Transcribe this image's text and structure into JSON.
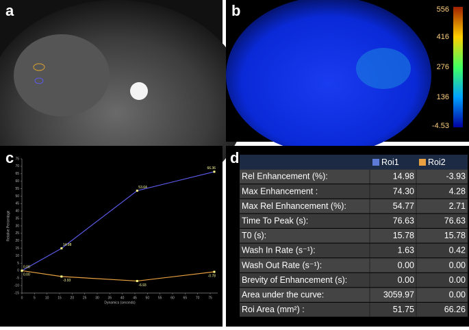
{
  "panels": {
    "a": "a",
    "b": "b",
    "c": "c",
    "d": "d"
  },
  "colorbar": {
    "clim": [
      -4.53,
      556
    ],
    "ticks": [
      556,
      416,
      276,
      136,
      -4.53
    ]
  },
  "chart_data": {
    "type": "line",
    "x_label": "Dynamics (seconds)",
    "y_label": "Relative Percentage",
    "x": [
      0,
      15.78,
      45.9,
      76.63
    ],
    "series": [
      {
        "name": "Roi1",
        "color": "#5a5ae6",
        "values": [
          0,
          14.98,
          53.64,
          66.36
        ],
        "value_labels": [
          "0.00",
          "14.98",
          "53.64",
          "66.36"
        ]
      },
      {
        "name": "Roi2",
        "color": "#e8a040",
        "values": [
          0,
          -3.93,
          -6.93,
          -0.78
        ],
        "value_labels": [
          "0.00",
          "-3.93",
          "-6.93",
          "-0.78"
        ]
      }
    ],
    "xlim": [
      0,
      78
    ],
    "xticks": [
      0,
      5,
      10,
      15,
      20,
      25,
      30,
      35,
      40,
      45,
      50,
      55,
      60,
      65,
      70,
      75
    ],
    "ylim": [
      -15,
      75
    ],
    "yticks": [
      -15,
      -10,
      -5,
      0,
      5,
      10,
      15,
      20,
      25,
      30,
      35,
      40,
      45,
      50,
      55,
      60,
      65,
      70,
      75
    ]
  },
  "table": {
    "header": [
      "Roi1",
      "Roi2"
    ],
    "rows": [
      [
        "Rel Enhancement  (%):",
        "14.98",
        "-3.93"
      ],
      [
        "Max Enhancement :",
        "74.30",
        "4.28"
      ],
      [
        "Max Rel Enhancement (%):",
        "54.77",
        "2.71"
      ],
      [
        "Time To Peak  (s):",
        "76.63",
        "76.63"
      ],
      [
        "T0 (s):",
        "15.78",
        "15.78"
      ],
      [
        "Wash In Rate (s⁻¹):",
        "1.63",
        "0.42"
      ],
      [
        "Wash Out Rate (s⁻¹):",
        "0.00",
        "0.00"
      ],
      [
        "Brevity of Enhancement (s):",
        "0.00",
        "0.00"
      ],
      [
        "Area under the curve:",
        "3059.97",
        "0.00"
      ],
      [
        "Roi Area (mm²) :",
        "51.75",
        "66.26"
      ]
    ]
  }
}
